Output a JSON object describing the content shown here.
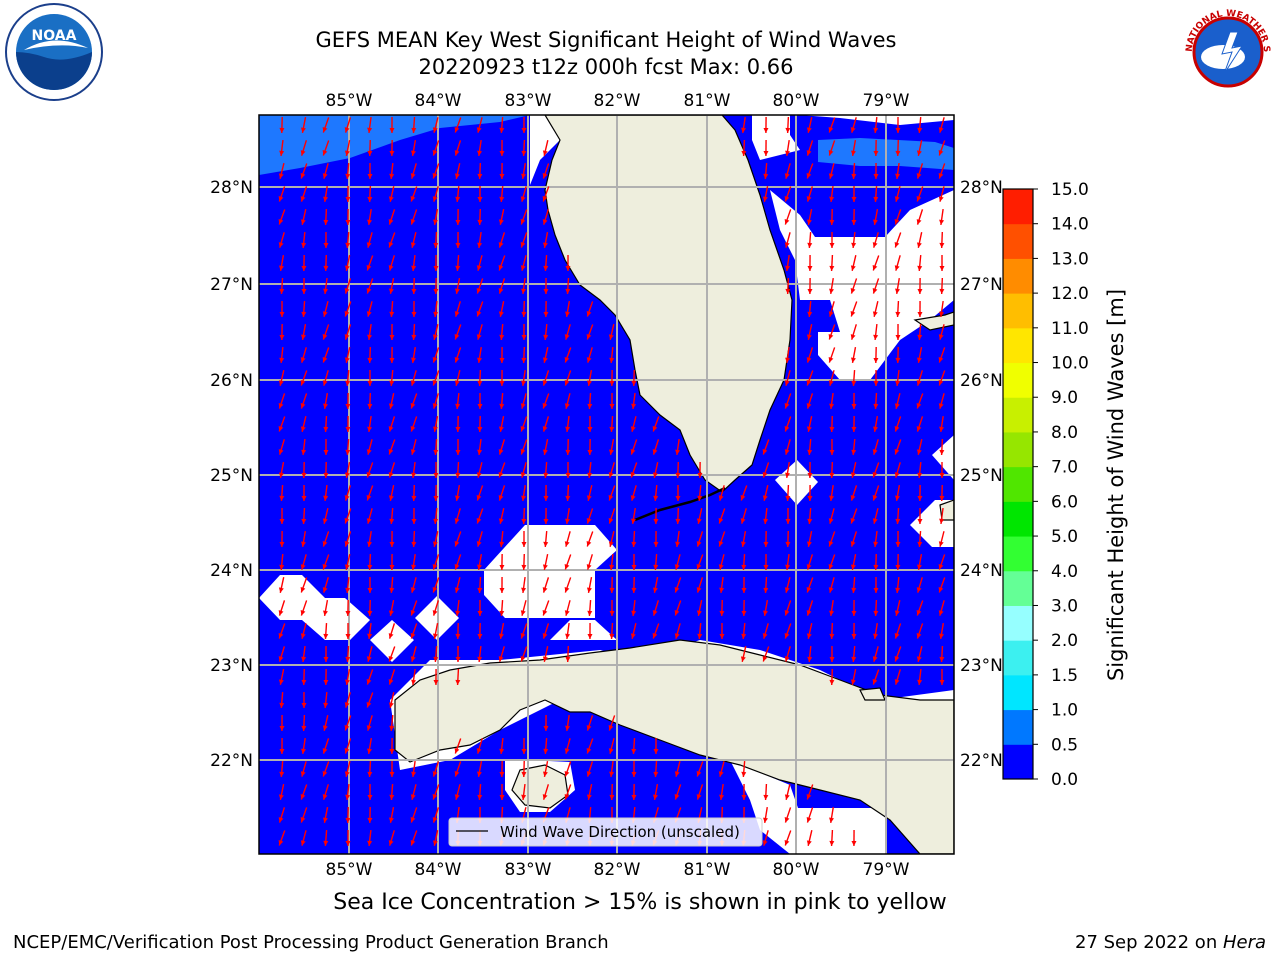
{
  "title_line1": "GEFS MEAN Key West Significant Height of Wind Waves",
  "title_line2": "20220923 t12z 000h fcst   Max: 0.66",
  "caption": "Sea Ice Concentration > 15% is shown in pink to yellow",
  "footer_left": "NCEP/EMC/Verification Post Processing Product Generation Branch",
  "footer_date": "27 Sep 2022 on ",
  "footer_host": "Hera",
  "legend_label": "Wind Wave Direction (unscaled)",
  "logos": {
    "noaa_text": "NOAA",
    "nws_text": "NATIONAL WEATHER SERVICE"
  },
  "colors": {
    "ocean": "#0000ff",
    "land": "#eeeedd",
    "arrow": "#ff0000",
    "grid": "#b0b0b0"
  },
  "chart_data": {
    "type": "heatmap",
    "title": "GEFS MEAN Key West Significant Height of Wind Waves",
    "subtitle": "20220923 t12z 000h fcst   Max: 0.66",
    "x_tick_labels": [
      "85°W",
      "84°W",
      "83°W",
      "82°W",
      "81°W",
      "80°W",
      "79°W"
    ],
    "y_tick_labels": [
      "28°N",
      "27°N",
      "26°N",
      "25°N",
      "24°N",
      "23°N",
      "22°N"
    ],
    "lon_range": [
      -86.0,
      -78.3
    ],
    "lat_range": [
      21.05,
      28.75
    ],
    "max_value": 0.66,
    "field_value_typical": "0.0–0.5 m (all ocean in lowest bin)",
    "wind_wave_direction": "mostly toward SSW (arrows from NNE)",
    "colorbar": {
      "label": "Significant Height of Wind Waves [m]",
      "ticks": [
        "0.0",
        "0.5",
        "1.0",
        "1.5",
        "2.0",
        "3.0",
        "4.0",
        "5.0",
        "6.0",
        "7.0",
        "8.0",
        "9.0",
        "10.0",
        "11.0",
        "12.0",
        "13.0",
        "14.0",
        "15.0"
      ],
      "colors": [
        "#0000ff",
        "#0078ff",
        "#00e6ff",
        "#3cf0f0",
        "#96ffff",
        "#64ff96",
        "#32ff32",
        "#00e600",
        "#50e600",
        "#96e600",
        "#c8f000",
        "#f0ff00",
        "#ffe600",
        "#ffbe00",
        "#ff8c00",
        "#ff5000",
        "#ff1e00"
      ]
    },
    "legend": "Wind Wave Direction (unscaled)"
  }
}
